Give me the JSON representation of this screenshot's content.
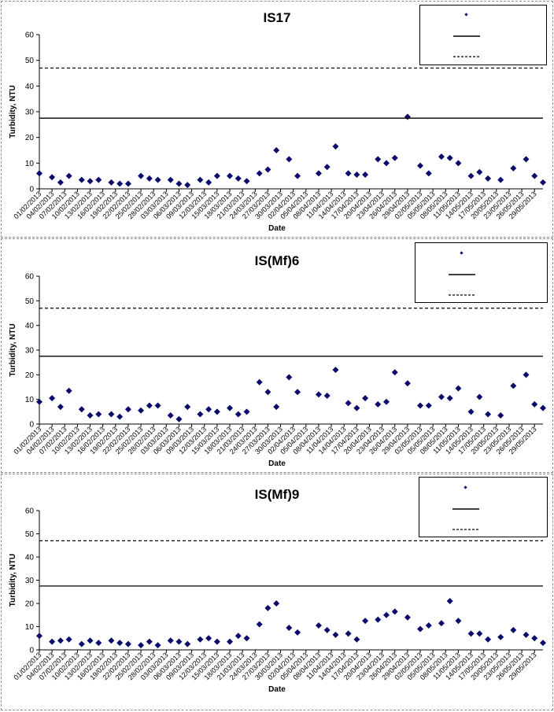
{
  "colors": {
    "marker": "#0b0b6e",
    "axis": "#000000",
    "line": "#000000"
  },
  "dates": [
    "01/02/2013",
    "04/02/2013",
    "07/02/2013",
    "10/02/2013",
    "13/02/2013",
    "16/02/2013",
    "19/02/2013",
    "22/02/2013",
    "25/02/2013",
    "28/02/2013",
    "03/03/2013",
    "06/03/2013",
    "09/03/2013",
    "12/03/2013",
    "15/03/2013",
    "18/03/2013",
    "21/03/2013",
    "24/03/2013",
    "27/03/2013",
    "30/03/2013",
    "02/04/2013",
    "05/04/2013",
    "08/04/2013",
    "11/04/2013",
    "14/04/2013",
    "17/04/2013",
    "20/04/2013",
    "23/04/2013",
    "26/04/2013",
    "29/04/2013",
    "02/05/2013",
    "05/05/2013",
    "08/05/2013",
    "11/05/2013",
    "14/05/2013",
    "17/05/2013",
    "20/05/2013",
    "23/05/2013",
    "26/05/2013",
    "29/05/2013"
  ],
  "chart_data": [
    {
      "type": "scatter",
      "title": "IS17",
      "xlabel": "Date",
      "ylabel": "Turbidity, NTU",
      "ylim": [
        0,
        60
      ],
      "yticks": [
        0,
        10,
        20,
        30,
        40,
        50,
        60
      ],
      "xlim": [
        "01/02/2013",
        "31/05/2013"
      ],
      "legend_position": "top-right",
      "series": [
        {
          "kind": "scatter",
          "x": [
            "01/02/2013",
            "04/02/2013",
            "06/02/2013",
            "08/02/2013",
            "11/02/2013",
            "13/02/2013",
            "15/02/2013",
            "18/02/2013",
            "20/02/2013",
            "22/02/2013",
            "25/02/2013",
            "27/02/2013",
            "01/03/2013",
            "04/03/2013",
            "06/03/2013",
            "08/03/2013",
            "11/03/2013",
            "13/03/2013",
            "15/03/2013",
            "18/03/2013",
            "20/03/2013",
            "22/03/2013",
            "25/03/2013",
            "27/03/2013",
            "29/03/2013",
            "01/04/2013",
            "03/04/2013",
            "08/04/2013",
            "10/04/2013",
            "12/04/2013",
            "15/04/2013",
            "17/04/2013",
            "19/04/2013",
            "22/04/2013",
            "24/04/2013",
            "26/04/2013",
            "29/04/2013",
            "02/05/2013",
            "04/05/2013",
            "07/05/2013",
            "09/05/2013",
            "11/05/2013",
            "14/05/2013",
            "16/05/2013",
            "18/05/2013",
            "21/05/2013",
            "24/05/2013",
            "27/05/2013",
            "29/05/2013",
            "31/05/2013"
          ],
          "values": [
            6,
            4.5,
            2.5,
            5,
            3.5,
            3,
            3.5,
            2.5,
            2,
            2,
            5,
            4,
            3.5,
            3.5,
            2,
            1.5,
            3.5,
            2.5,
            5,
            5,
            4,
            3,
            6,
            7.5,
            15,
            11.5,
            5,
            6,
            8.5,
            16.5,
            6,
            5.5,
            5.5,
            11.5,
            10,
            12,
            28,
            9,
            6,
            12.5,
            12,
            10,
            5,
            6.5,
            4,
            3.5,
            8,
            11.5,
            5,
            2.5
          ]
        },
        {
          "kind": "hline",
          "value": 27.5
        },
        {
          "kind": "hline-dashed",
          "value": 47
        }
      ]
    },
    {
      "type": "scatter",
      "title": "IS(Mf)6",
      "xlabel": "Date",
      "ylabel": "Turbidity, NTU",
      "ylim": [
        0,
        60
      ],
      "yticks": [
        0,
        10,
        20,
        30,
        40,
        50,
        60
      ],
      "xlim": [
        "01/02/2013",
        "31/05/2013"
      ],
      "legend_position": "top-right",
      "series": [
        {
          "kind": "scatter",
          "x": [
            "01/02/2013",
            "04/02/2013",
            "06/02/2013",
            "08/02/2013",
            "11/02/2013",
            "13/02/2013",
            "15/02/2013",
            "18/02/2013",
            "20/02/2013",
            "22/02/2013",
            "25/02/2013",
            "27/02/2013",
            "01/03/2013",
            "04/03/2013",
            "06/03/2013",
            "08/03/2013",
            "11/03/2013",
            "13/03/2013",
            "15/03/2013",
            "18/03/2013",
            "20/03/2013",
            "22/03/2013",
            "25/03/2013",
            "27/03/2013",
            "29/03/2013",
            "01/04/2013",
            "03/04/2013",
            "08/04/2013",
            "10/04/2013",
            "12/04/2013",
            "15/04/2013",
            "17/04/2013",
            "19/04/2013",
            "22/04/2013",
            "24/04/2013",
            "26/04/2013",
            "29/04/2013",
            "02/05/2013",
            "04/05/2013",
            "07/05/2013",
            "09/05/2013",
            "11/05/2013",
            "14/05/2013",
            "16/05/2013",
            "18/05/2013",
            "21/05/2013",
            "24/05/2013",
            "27/05/2013",
            "29/05/2013",
            "31/05/2013"
          ],
          "values": [
            9,
            10.5,
            7,
            13.5,
            6,
            3.5,
            4,
            4,
            3,
            6,
            5.5,
            7.5,
            7.5,
            3.5,
            2,
            7,
            4,
            6,
            5,
            6.5,
            4,
            5,
            17,
            13,
            7,
            19,
            13,
            12,
            11.5,
            22,
            8.5,
            6.5,
            10.5,
            8,
            9,
            21,
            16.5,
            7.5,
            7.5,
            11,
            10.5,
            14.5,
            5,
            11,
            4,
            3.5,
            15.5,
            20,
            8,
            6.5
          ]
        },
        {
          "kind": "hline",
          "value": 27.5
        },
        {
          "kind": "hline-dashed",
          "value": 47
        }
      ]
    },
    {
      "type": "scatter",
      "title": "IS(Mf)9",
      "xlabel": "Date",
      "ylabel": "Turbidity, NTU",
      "ylim": [
        0,
        60
      ],
      "yticks": [
        0,
        10,
        20,
        30,
        40,
        50,
        60
      ],
      "xlim": [
        "01/02/2013",
        "31/05/2013"
      ],
      "legend_position": "top-right",
      "series": [
        {
          "kind": "scatter",
          "x": [
            "01/02/2013",
            "04/02/2013",
            "06/02/2013",
            "08/02/2013",
            "11/02/2013",
            "13/02/2013",
            "15/02/2013",
            "18/02/2013",
            "20/02/2013",
            "22/02/2013",
            "25/02/2013",
            "27/02/2013",
            "01/03/2013",
            "04/03/2013",
            "06/03/2013",
            "08/03/2013",
            "11/03/2013",
            "13/03/2013",
            "15/03/2013",
            "18/03/2013",
            "20/03/2013",
            "22/03/2013",
            "25/03/2013",
            "27/03/2013",
            "29/03/2013",
            "01/04/2013",
            "03/04/2013",
            "08/04/2013",
            "10/04/2013",
            "12/04/2013",
            "15/04/2013",
            "17/04/2013",
            "19/04/2013",
            "22/04/2013",
            "24/04/2013",
            "26/04/2013",
            "29/04/2013",
            "02/05/2013",
            "04/05/2013",
            "07/05/2013",
            "09/05/2013",
            "11/05/2013",
            "14/05/2013",
            "16/05/2013",
            "18/05/2013",
            "21/05/2013",
            "24/05/2013",
            "27/05/2013",
            "29/05/2013",
            "31/05/2013"
          ],
          "values": [
            6,
            3.5,
            4,
            4.5,
            2.5,
            4,
            3,
            4,
            3,
            2.5,
            2,
            3.5,
            2,
            4,
            3.5,
            2.5,
            4.5,
            5,
            3.5,
            3.5,
            6,
            5,
            11,
            18,
            20,
            9.5,
            7.5,
            10.5,
            8.5,
            6.5,
            7,
            4.5,
            12.5,
            13,
            15,
            16.5,
            14,
            9,
            10.5,
            11.5,
            21,
            12.5,
            7,
            7,
            4.5,
            5.5,
            8.5,
            6.5,
            5,
            3
          ]
        },
        {
          "kind": "hline",
          "value": 27.5
        },
        {
          "kind": "hline-dashed",
          "value": 47
        }
      ]
    }
  ]
}
